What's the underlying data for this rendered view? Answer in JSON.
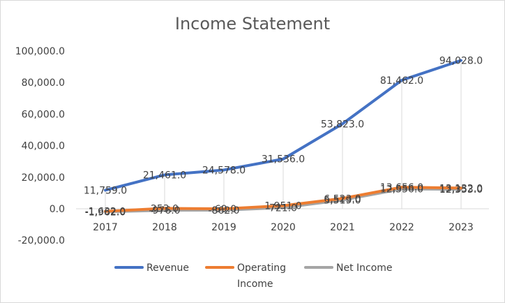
{
  "chart_data": {
    "type": "line",
    "title": "Income Statement",
    "categories": [
      "2017",
      "2018",
      "2019",
      "2020",
      "2021",
      "2022",
      "2023"
    ],
    "ylim": [
      -20000,
      100000
    ],
    "yticks": [
      -20000,
      0,
      20000,
      40000,
      60000,
      80000,
      100000
    ],
    "ytick_labels": [
      "-20,000.0",
      "0.0",
      "20,000.0",
      "40,000.0",
      "60,000.0",
      "80,000.0",
      "100,000.0"
    ],
    "grid": false,
    "legend_position": "bottom",
    "series": [
      {
        "name": "Revenue",
        "color": "#4472c4",
        "values": [
          11759,
          21461,
          24578,
          31536,
          53823,
          81462,
          94028
        ],
        "labels": [
          "11,759.0",
          "21,461.0",
          "24,578.0",
          "31,536.0",
          "53,823.0",
          "81,462.0",
          "94,028.0"
        ]
      },
      {
        "name": "Operating Income",
        "legend_lines": [
          "Operating",
          "Income"
        ],
        "color": "#ed7d31",
        "values": [
          -1632,
          253,
          -69,
          1951,
          6523,
          13656,
          13132
        ],
        "labels": [
          "-1,632.0",
          "253.0",
          "-69.0",
          "1,951.0",
          "6,523.0",
          "13,656.0",
          "13,132.0"
        ]
      },
      {
        "name": "Net Income",
        "color": "#a5a5a5",
        "values": [
          -1962,
          -976,
          -862,
          721,
          5519,
          12556,
          12353
        ],
        "labels": [
          "-1,962.0",
          "-976.0",
          "-862.0",
          "721.0",
          "5,519.0",
          "12,556.0",
          "12,353.0"
        ]
      }
    ]
  }
}
